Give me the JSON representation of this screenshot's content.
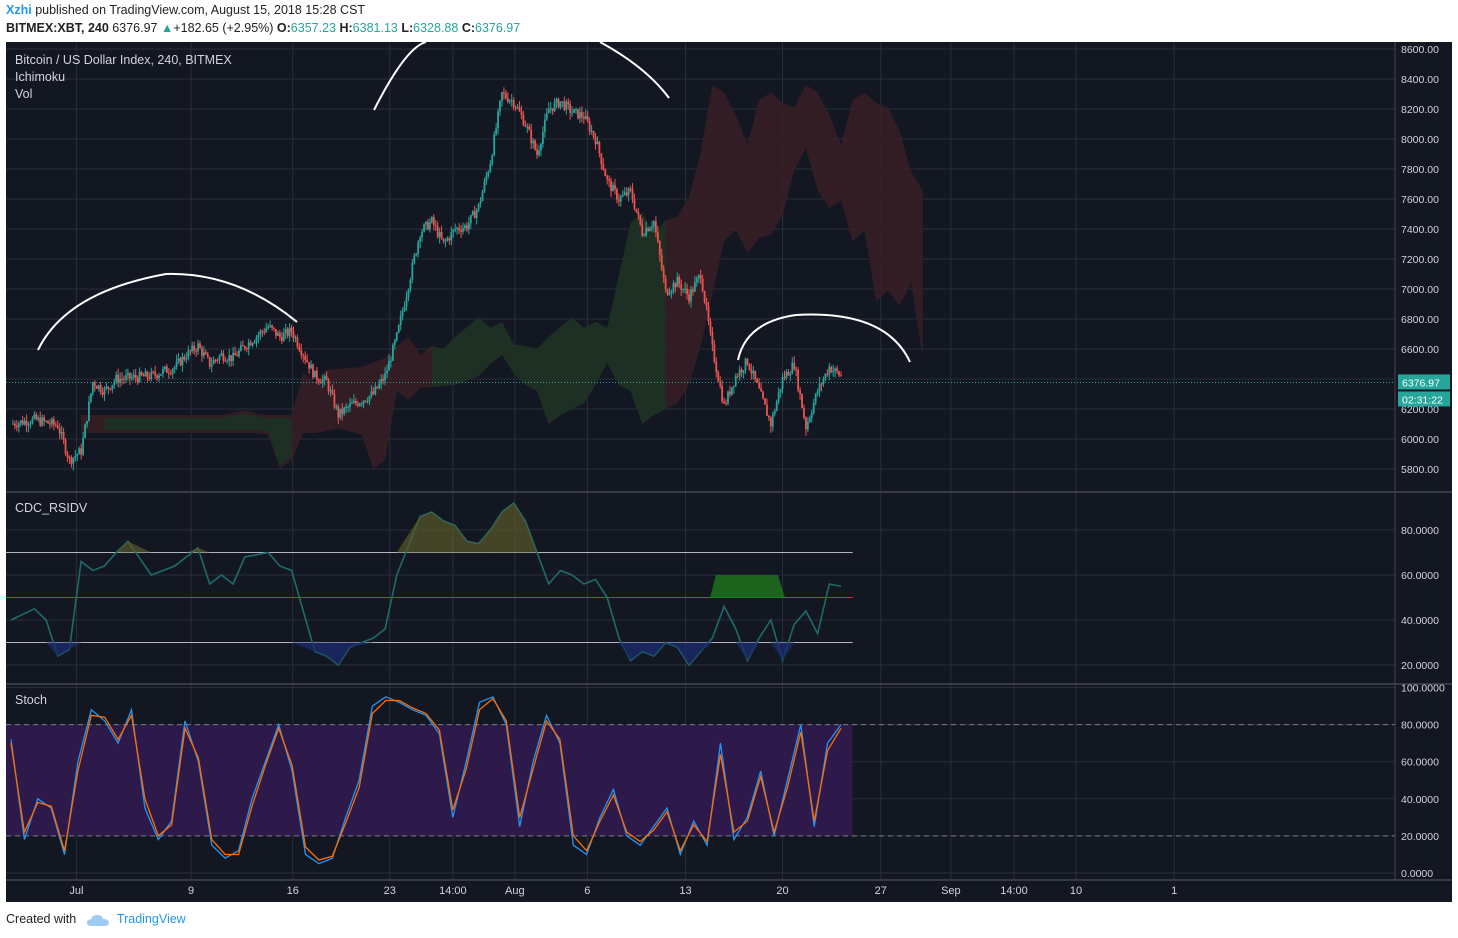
{
  "header": {
    "user": "Xzhi",
    "published": "published on TradingView.com, August 15, 2018 15:28 CST",
    "symbol": "BITMEX:XBT, 240",
    "last": "6376.97",
    "up_arrow": "▲",
    "change": "+182.65 (+2.95%)",
    "open_label": "O:",
    "open": "6357.23",
    "high_label": "H:",
    "high": "6381.13",
    "low_label": "L:",
    "low": "6328.88",
    "close_label": "C:",
    "close": "6376.97"
  },
  "footer": {
    "created_with": "Created with",
    "brand": "TradingView"
  },
  "colors": {
    "bg": "#131722",
    "grid": "#2a2e39",
    "up": "#26a69a",
    "down": "#ef5350",
    "text": "#d1d4dc",
    "stoch_fill": "#2e1a4a",
    "stoch_k": "#2196f3",
    "stoch_d": "#ff6d00",
    "rsi_line": "#1b5e5e",
    "rsi_mid": "#c0392b"
  },
  "chart_data": [
    {
      "type": "candlestick",
      "title": "Bitcoin / US Dollar Index, 240, BITMEX",
      "indicators": [
        "Ichimoku",
        "Vol"
      ],
      "ylim": [
        5700,
        8600
      ],
      "yticks": [
        "8600.00",
        "8400.00",
        "8200.00",
        "8000.00",
        "7800.00",
        "7600.00",
        "7400.00",
        "7200.00",
        "7000.00",
        "6800.00",
        "6600.00",
        "6400.00",
        "6200.00",
        "6000.00",
        "5800.00"
      ],
      "last_price_label": "6376.97",
      "countdown_label": "02:31:22",
      "close_path": [
        [
          0,
          6100
        ],
        [
          2,
          6130
        ],
        [
          4,
          6090
        ],
        [
          5,
          5860
        ],
        [
          6,
          5920
        ],
        [
          7,
          6380
        ],
        [
          8,
          6320
        ],
        [
          9,
          6400
        ],
        [
          12,
          6420
        ],
        [
          14,
          6480
        ],
        [
          15,
          6560
        ],
        [
          16,
          6620
        ],
        [
          17,
          6500
        ],
        [
          18,
          6560
        ],
        [
          19,
          6540
        ],
        [
          20,
          6620
        ],
        [
          22,
          6750
        ],
        [
          23,
          6680
        ],
        [
          24,
          6720
        ],
        [
          26,
          6420
        ],
        [
          27,
          6380
        ],
        [
          28,
          6160
        ],
        [
          29,
          6220
        ],
        [
          31,
          6300
        ],
        [
          32,
          6420
        ],
        [
          33,
          6680
        ],
        [
          35,
          7380
        ],
        [
          36,
          7450
        ],
        [
          37,
          7300
        ],
        [
          38,
          7400
        ],
        [
          39,
          7420
        ],
        [
          40,
          7550
        ],
        [
          41,
          7850
        ],
        [
          42,
          8300
        ],
        [
          43,
          8250
        ],
        [
          44,
          8100
        ],
        [
          45,
          7900
        ],
        [
          46,
          8200
        ],
        [
          47,
          8250
        ],
        [
          48,
          8180
        ],
        [
          49,
          8150
        ],
        [
          50,
          8000
        ],
        [
          51,
          7720
        ],
        [
          52,
          7600
        ],
        [
          53,
          7650
        ],
        [
          54,
          7380
        ],
        [
          55,
          7450
        ],
        [
          56,
          6980
        ],
        [
          57,
          7050
        ],
        [
          58,
          6950
        ],
        [
          59,
          7100
        ],
        [
          60,
          6600
        ],
        [
          61,
          6220
        ],
        [
          62,
          6420
        ],
        [
          63,
          6520
        ],
        [
          64,
          6320
        ],
        [
          65,
          6100
        ],
        [
          66,
          6400
        ],
        [
          67,
          6500
        ],
        [
          68,
          6080
        ],
        [
          69,
          6320
        ],
        [
          70,
          6480
        ],
        [
          71,
          6420
        ]
      ]
    },
    {
      "type": "line",
      "title": "CDC_RSIDV",
      "ylim": [
        15,
        95
      ],
      "yticks": [
        "80.0000",
        "60.0000",
        "40.0000",
        "20.0000"
      ],
      "levels": [
        70,
        50,
        30
      ],
      "x": [
        0,
        2,
        3,
        4,
        5,
        6,
        7,
        8,
        9,
        10,
        12,
        14,
        15,
        16,
        17,
        18,
        19,
        20,
        22,
        23,
        24,
        26,
        27,
        28,
        29,
        31,
        32,
        33,
        35,
        36,
        37,
        38,
        39,
        40,
        41,
        42,
        43,
        44,
        45,
        46,
        47,
        48,
        49,
        50,
        51,
        52,
        53,
        54,
        55,
        56,
        57,
        58,
        59,
        60,
        61,
        62,
        63,
        64,
        65,
        66,
        67,
        68,
        69,
        70,
        71
      ],
      "values": [
        40,
        45,
        40,
        24,
        27,
        66,
        62,
        64,
        70,
        75,
        60,
        64,
        68,
        72,
        56,
        60,
        56,
        68,
        70,
        64,
        62,
        26,
        24,
        20,
        28,
        32,
        36,
        60,
        86,
        88,
        84,
        82,
        75,
        74,
        80,
        88,
        92,
        84,
        70,
        56,
        62,
        60,
        56,
        58,
        50,
        32,
        22,
        26,
        24,
        30,
        28,
        20,
        26,
        32,
        46,
        36,
        22,
        32,
        40,
        22,
        38,
        44,
        34,
        56,
        55
      ]
    },
    {
      "type": "line",
      "title": "Stoch",
      "ylim": [
        0,
        100
      ],
      "yticks": [
        "100.0000",
        "80.0000",
        "60.0000",
        "40.0000",
        "20.0000",
        "0.0000"
      ],
      "band": [
        20,
        80
      ],
      "series": [
        {
          "values": [
            72,
            18,
            40,
            35,
            10,
            60,
            88,
            82,
            70,
            88,
            35,
            18,
            28,
            82,
            60,
            15,
            8,
            12,
            40,
            60,
            80,
            55,
            10,
            5,
            8,
            30,
            50,
            90,
            95,
            92,
            88,
            85,
            75,
            30,
            60,
            92,
            95,
            80,
            25,
            60,
            85,
            70,
            15,
            10,
            30,
            45,
            20,
            15,
            25,
            35,
            10,
            28,
            15,
            70,
            18,
            30,
            55,
            20,
            50,
            80,
            25,
            70,
            80
          ]
        },
        {
          "values": [
            70,
            22,
            38,
            36,
            12,
            55,
            85,
            84,
            72,
            85,
            40,
            20,
            26,
            78,
            62,
            18,
            10,
            10,
            36,
            58,
            78,
            58,
            14,
            7,
            9,
            27,
            46,
            86,
            93,
            93,
            89,
            86,
            77,
            34,
            56,
            88,
            94,
            82,
            30,
            56,
            82,
            72,
            20,
            12,
            28,
            42,
            22,
            17,
            23,
            33,
            12,
            26,
            17,
            64,
            22,
            28,
            52,
            22,
            46,
            76,
            28,
            66,
            78
          ]
        }
      ]
    }
  ],
  "x_axis": {
    "labels": [
      {
        "i": 5.6,
        "t": "Jul"
      },
      {
        "i": 15.4,
        "t": "9"
      },
      {
        "i": 24.1,
        "t": "16"
      },
      {
        "i": 32.4,
        "t": "23"
      },
      {
        "i": 37.8,
        "t": "14:00"
      },
      {
        "i": 43.1,
        "t": "Aug"
      },
      {
        "i": 49.3,
        "t": "6"
      },
      {
        "i": 57.7,
        "t": "13"
      },
      {
        "i": 66.0,
        "t": "20"
      },
      {
        "i": 74.4,
        "t": "27"
      },
      {
        "i": 80.4,
        "t": "Sep"
      },
      {
        "i": 85.8,
        "t": "14:00"
      },
      {
        "i": 91.1,
        "t": "10"
      },
      {
        "i": 99.5,
        "t": "1"
      }
    ]
  }
}
